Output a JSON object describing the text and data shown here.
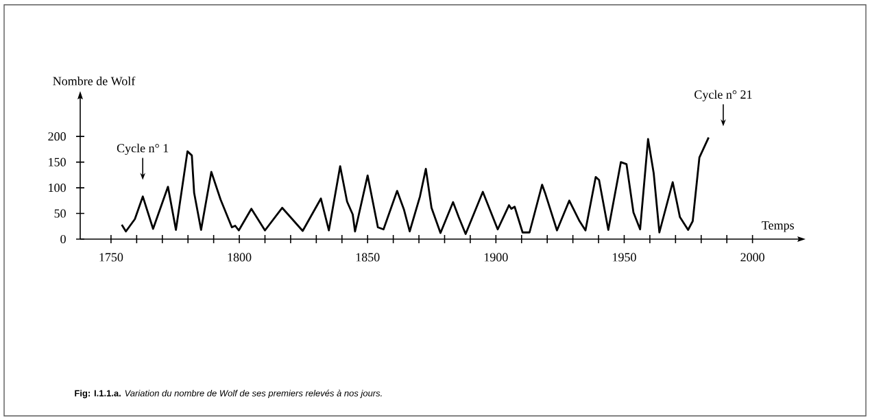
{
  "chart_data": {
    "type": "line",
    "xlabel": "Temps",
    "ylabel": "Nombre de Wolf",
    "color": "#000000",
    "x": [
      1754.2,
      1755.8,
      1759.3,
      1762.4,
      1766.4,
      1772.2,
      1775.3,
      1779.8,
      1781.5,
      1782.4,
      1785.1,
      1789.1,
      1792.7,
      1797.1,
      1798.4,
      1799.8,
      1804.7,
      1810,
      1816.7,
      1824.7,
      1831.8,
      1834.9,
      1839.3,
      1842,
      1844.2,
      1845.1,
      1850,
      1854,
      1856.2,
      1861.5,
      1864.2,
      1866.4,
      1870.4,
      1872.7,
      1874.9,
      1878.4,
      1883.3,
      1885.5,
      1888.2,
      1894.9,
      1900.7,
      1905.1,
      1906,
      1907.3,
      1910.4,
      1913.1,
      1918,
      1919.3,
      1923.8,
      1928.6,
      1932.6,
      1934.9,
      1938.9,
      1940.2,
      1943.8,
      1948.7,
      1950.9,
      1953.6,
      1956.2,
      1959.3,
      1961.5,
      1963.7,
      1968.9,
      1971.7,
      1974.9,
      1976.7,
      1979.3,
      1982.9
    ],
    "values": [
      28,
      15,
      39,
      83,
      20,
      102,
      18,
      171,
      163,
      90,
      18,
      131,
      77,
      23,
      26,
      17,
      59,
      17,
      61,
      16,
      79,
      17,
      142,
      73,
      48,
      15,
      124,
      23,
      19,
      94,
      57,
      15,
      83,
      137,
      61,
      12,
      72,
      43,
      10,
      92,
      19,
      66,
      59,
      63,
      13,
      13,
      106,
      88,
      17,
      75,
      35,
      17,
      121,
      115,
      18,
      150,
      146,
      52,
      19,
      195,
      128,
      13,
      111,
      43,
      18,
      35,
      159,
      198
    ],
    "xlim": [
      1738,
      2018
    ],
    "ylim": [
      0,
      275
    ],
    "xticks": [
      1750,
      {
        "value": 1760,
        "label": null
      },
      {
        "value": 1770,
        "label": null
      },
      {
        "value": 1780,
        "label": null
      },
      {
        "value": 1790,
        "label": null
      },
      1800,
      {
        "value": 1810,
        "label": null
      },
      {
        "value": 1820,
        "label": null
      },
      {
        "value": 1830,
        "label": null
      },
      {
        "value": 1840,
        "label": null
      },
      1850,
      {
        "value": 1860,
        "label": null
      },
      {
        "value": 1870,
        "label": null
      },
      {
        "value": 1880,
        "label": null
      },
      {
        "value": 1890,
        "label": null
      },
      1900,
      {
        "value": 1910,
        "label": null
      },
      {
        "value": 1920,
        "label": null
      },
      {
        "value": 1930,
        "label": null
      },
      {
        "value": 1940,
        "label": null
      },
      1950,
      {
        "value": 1960,
        "label": null
      },
      {
        "value": 1970,
        "label": null
      },
      {
        "value": 1980,
        "label": null
      },
      {
        "value": 1990,
        "label": null
      },
      2000
    ],
    "yticks": [
      0,
      50,
      100,
      150,
      200
    ],
    "annotations": [
      "Cycle n° 1",
      "Cycle n° 21",
      "**Fig: I.1.1.a.** *Variation du nombre de Wolf de ses premiers relevés à nos jours.*"
    ]
  }
}
